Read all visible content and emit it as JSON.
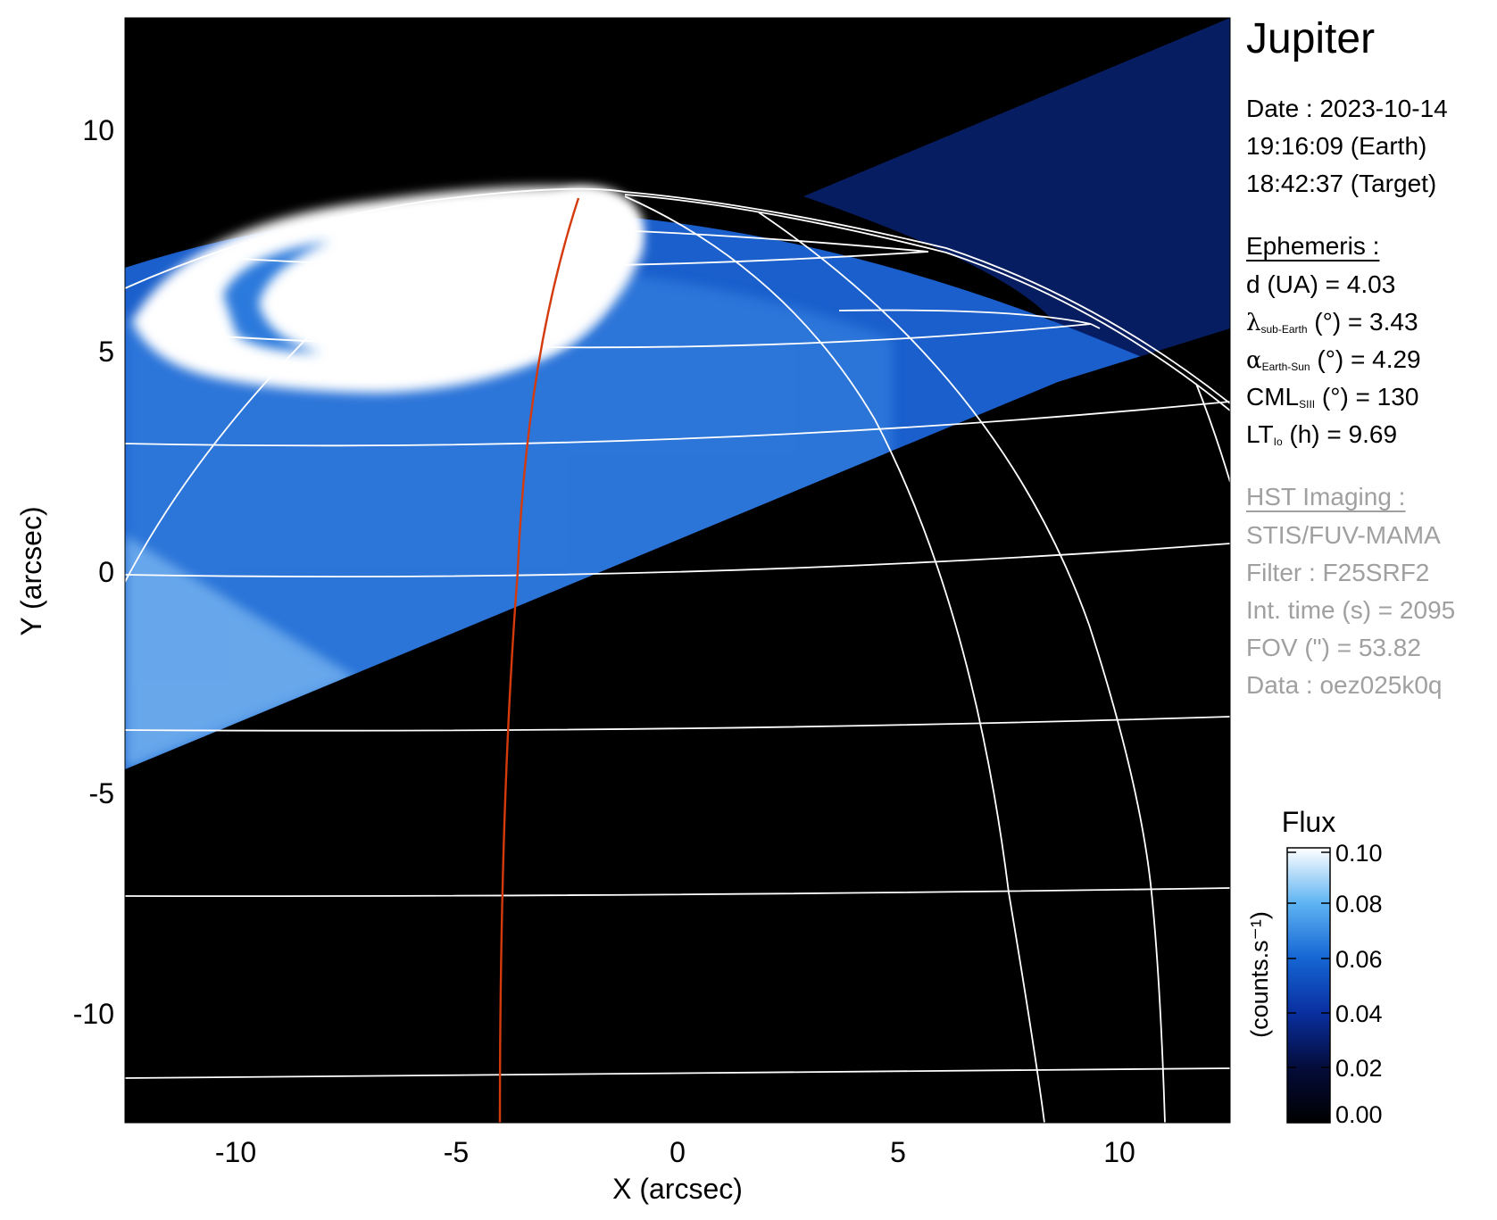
{
  "plot": {
    "title": "Jupiter",
    "xlabel": "X (arcsec)",
    "ylabel": "Y (arcsec)",
    "xlim": [
      -12.5,
      12.5
    ],
    "ylim": [
      -12.5,
      12.5
    ],
    "xticks": [
      "-10",
      "-5",
      "0",
      "5",
      "10"
    ],
    "yticks": [
      "10",
      "5",
      "0",
      "-5",
      "-10"
    ],
    "colors": {
      "red_track": "#d43a0c",
      "grid": "#ffffff",
      "background": "#000000",
      "aurora_core": "#ffffff",
      "emission": "#1f6fd6"
    }
  },
  "info": {
    "date": "Date : 2023-10-14",
    "time_earth": "19:16:09 (Earth)",
    "time_target": "18:42:37 (Target)",
    "ephemeris_header": "Ephemeris :",
    "distance": "d (UA)    = 4.03",
    "lambda_symbol": "λ",
    "lambda_sub": "sub-Earth",
    "lambda_rest": " (°) = 3.43",
    "alpha_symbol": "α",
    "alpha_sub": "Earth-Sun",
    "alpha_rest": " (°) = 4.29",
    "cml_label": "CML",
    "cml_sub": "SIII",
    "cml_rest": " (°) = 130",
    "lt_label": "LT",
    "lt_sub": "Io",
    "lt_rest": " (h) = 9.69",
    "hst_header": "HST Imaging :",
    "instrument": "STIS/FUV-MAMA",
    "filter": "Filter : F25SRF2",
    "int_time": "Int. time (s) = 2095",
    "fov": "FOV (\") = 53.82",
    "data_id": "Data : oez025k0q"
  },
  "colorbar": {
    "title": "Flux",
    "label": "(counts.s⁻¹)",
    "ticks": [
      "0.10",
      "0.08",
      "0.06",
      "0.04",
      "0.02",
      "0.00"
    ],
    "range": [
      0.0,
      0.1
    ]
  }
}
